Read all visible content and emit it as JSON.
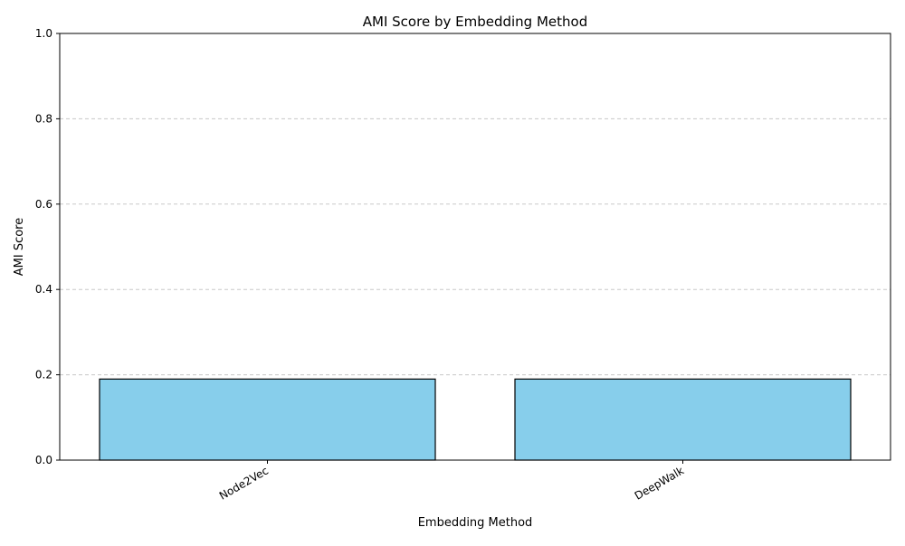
{
  "chart_data": {
    "type": "bar",
    "title": "AMI Score by Embedding Method",
    "xlabel": "Embedding Method",
    "ylabel": "AMI Score",
    "categories": [
      "Node2Vec",
      "DeepWalk"
    ],
    "values": [
      0.19,
      0.19
    ],
    "ylim": [
      0,
      1
    ],
    "yticks": [
      "0.0",
      "0.2",
      "0.4",
      "0.6",
      "0.8",
      "1.0"
    ],
    "grid": "y-dashed",
    "xtick_rotation": 30,
    "colors": {
      "bar": "#87CEEB",
      "bar_edge": "#000000",
      "grid": "#c8c8c8"
    }
  }
}
